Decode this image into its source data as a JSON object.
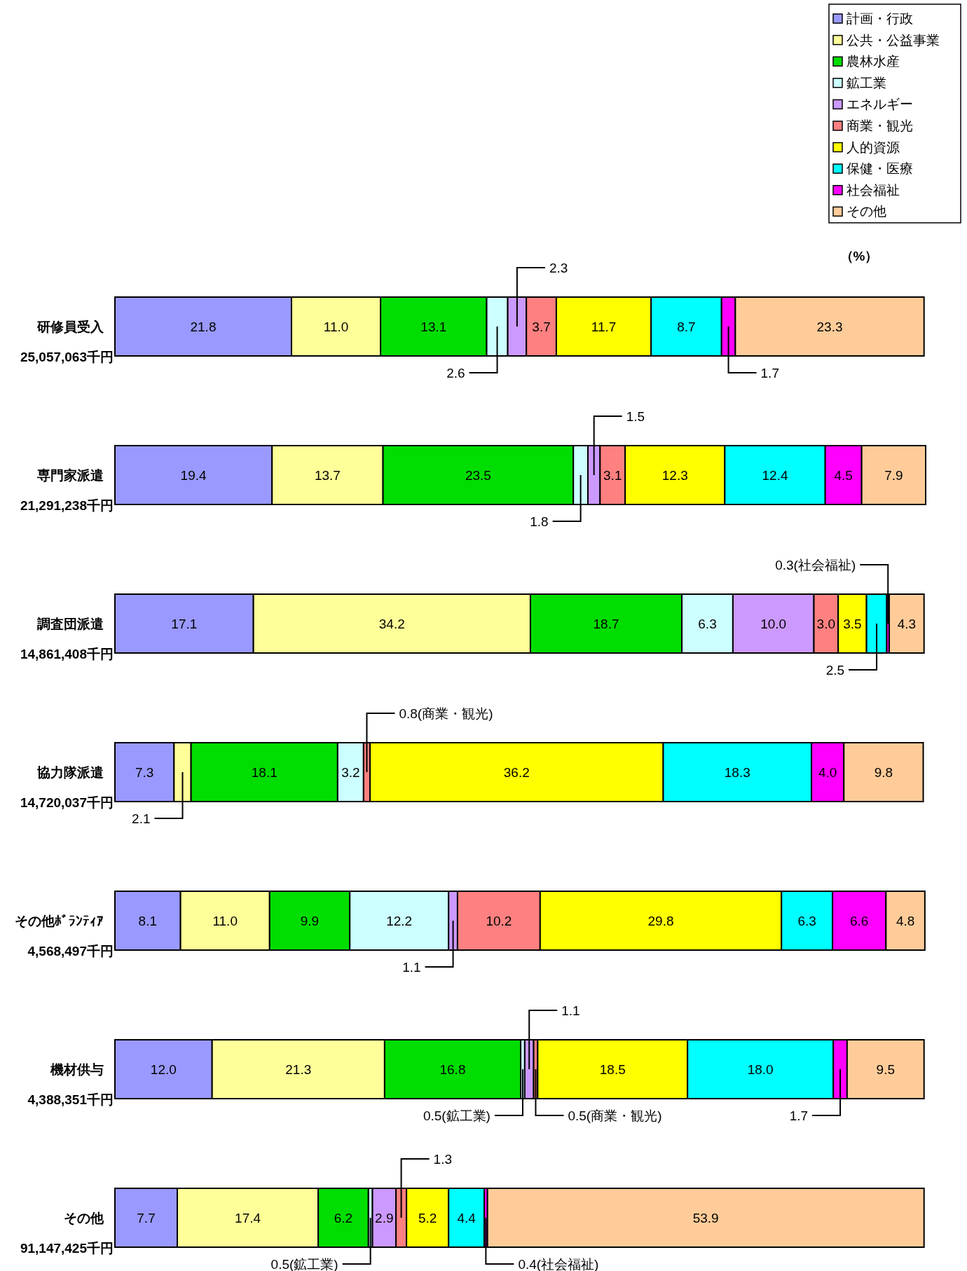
{
  "chart_data": {
    "type": "bar",
    "orientation": "horizontal",
    "stacked": true,
    "legend": "top right",
    "data_labels": false,
    "annotations": [
      "（%）"
    ],
    "categories": [
      "研修員受入\n25,057,063千円",
      "専門家派遣\n21,291,238千円",
      "調査団派遣\n14,861,408千円",
      "協力隊派遣\n14,720,037千円",
      "その他ﾎﾞﾗﾝﾃｨｱ\n4,568,497千円",
      "機材供与\n4,388,351千円",
      "その他\n91,147,425千円"
    ],
    "series": [
      {
        "name": "計画・行政",
        "color": "#9999ff",
        "values": [
          21.8,
          19.4,
          17.1,
          7.3,
          8.1,
          12.0,
          7.7
        ],
        "value_labels": [
          "21.8",
          "19.4",
          "17.1",
          "7.3",
          "8.1",
          "12.0",
          "7.7"
        ]
      },
      {
        "name": "公共・公益事業",
        "color": "#ffff99",
        "values": [
          11.0,
          13.7,
          34.2,
          2.1,
          11.0,
          21.3,
          17.4
        ],
        "value_labels": [
          "11.0",
          "13.7",
          "34.2",
          "2.1",
          "11.0",
          "21.3",
          "17.4"
        ]
      },
      {
        "name": "農林水産",
        "color": "#00dd00",
        "values": [
          13.1,
          23.5,
          18.7,
          18.1,
          9.9,
          16.8,
          6.2
        ],
        "value_labels": [
          "13.1",
          "23.5",
          "18.7",
          "18.1",
          "9.9",
          "16.8",
          "6.2"
        ]
      },
      {
        "name": "鉱工業",
        "color": "#ccffff",
        "values": [
          2.6,
          1.8,
          6.3,
          3.2,
          12.2,
          0.5,
          0.5
        ],
        "value_labels": [
          "2.6",
          "1.8",
          "6.3",
          "3.2",
          "12.2",
          "0.5(鉱工業)",
          "0.5(鉱工業)"
        ]
      },
      {
        "name": "エネルギー",
        "color": "#cc99ff",
        "values": [
          2.3,
          1.5,
          10.0,
          null,
          1.1,
          1.1,
          2.9
        ],
        "value_labels": [
          "2.3",
          "1.5",
          "10.0",
          null,
          "1.1",
          "1.1",
          "2.9"
        ]
      },
      {
        "name": "商業・観光",
        "color": "#ff8080",
        "values": [
          3.7,
          3.1,
          3.0,
          0.8,
          10.2,
          0.5,
          1.3
        ],
        "value_labels": [
          "3.7",
          "3.1",
          "3.0",
          "0.8(商業・観光)",
          "10.2",
          "0.5(商業・観光)",
          "1.3"
        ]
      },
      {
        "name": "人的資源",
        "color": "#ffff00",
        "values": [
          11.7,
          12.3,
          3.5,
          36.2,
          29.8,
          18.5,
          5.2
        ],
        "value_labels": [
          "11.7",
          "12.3",
          "3.5",
          "36.2",
          "29.8",
          "18.5",
          "5.2"
        ]
      },
      {
        "name": "保健・医療",
        "color": "#00ffff",
        "values": [
          8.7,
          12.4,
          2.5,
          18.3,
          6.3,
          18.0,
          4.4
        ],
        "value_labels": [
          "8.7",
          "12.4",
          "2.5",
          "18.3",
          "6.3",
          "18.0",
          "4.4"
        ]
      },
      {
        "name": "社会福祉",
        "color": "#ff00ff",
        "values": [
          1.7,
          4.5,
          0.3,
          4.0,
          6.6,
          1.7,
          0.4
        ],
        "value_labels": [
          "1.7",
          "4.5",
          "0.3(社会福祉)",
          "4.0",
          "6.6",
          "1.7",
          "0.4(社会福祉)"
        ]
      },
      {
        "name": "その他",
        "color": "#ffcc99",
        "values": [
          23.3,
          7.9,
          4.3,
          9.8,
          4.8,
          9.5,
          53.9
        ],
        "value_labels": [
          "23.3",
          "7.9",
          "4.3",
          "9.8",
          "4.8",
          "9.5",
          "53.9"
        ]
      }
    ]
  }
}
